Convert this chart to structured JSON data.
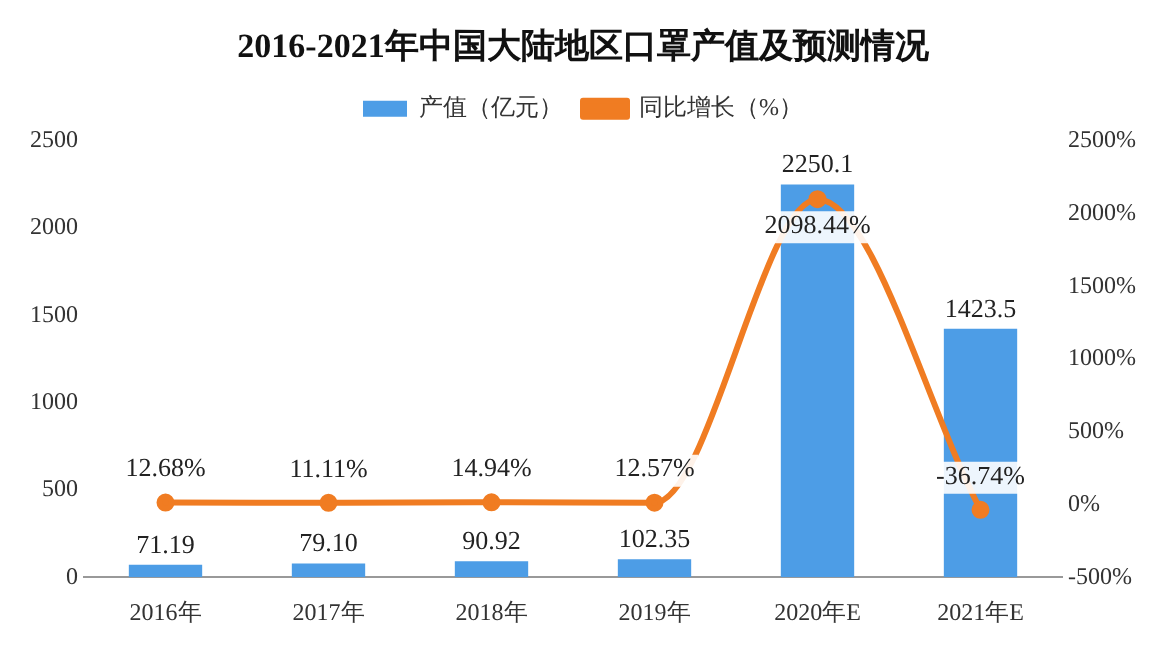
{
  "chart_data": {
    "type": "bar",
    "title": "2016-2021年中国大陆地区口罩产值及预测情况",
    "categories": [
      "2016年",
      "2017年",
      "2018年",
      "2019年",
      "2020年E",
      "2021年E"
    ],
    "series": [
      {
        "name": "产值（亿元）",
        "color": "#4d9de6",
        "values": [
          71.19,
          79.1,
          90.92,
          102.35,
          2250.1,
          1423.5
        ],
        "value_labels": [
          "71.19",
          "79.10",
          "90.92",
          "102.35",
          "2250.1",
          "1423.5"
        ]
      },
      {
        "name": "同比增长（%）",
        "type": "line",
        "axis": "y2",
        "color": "#f07c22",
        "values": [
          12.68,
          11.11,
          14.94,
          12.57,
          2098.44,
          -36.74
        ],
        "value_labels": [
          "12.68%",
          "11.11%",
          "14.94%",
          "12.57%",
          "2098.44%",
          "-36.74%"
        ]
      }
    ],
    "ylim": [
      0,
      2500
    ],
    "yticks": [
      0,
      500,
      1000,
      1500,
      2000,
      2500
    ],
    "y2lim": [
      -500,
      2500
    ],
    "y2ticks": [
      {
        "value": -500,
        "label": "-500%"
      },
      {
        "value": 0,
        "label": "0%"
      },
      {
        "value": 500,
        "label": "500%"
      },
      {
        "value": 1000,
        "label": "1000%"
      },
      {
        "value": 1500,
        "label": "1500%"
      },
      {
        "value": 2000,
        "label": "2000%"
      },
      {
        "value": 2500,
        "label": "2500%"
      }
    ],
    "legend": "top",
    "grid": false,
    "marker": "circle",
    "line_style": "solid"
  }
}
